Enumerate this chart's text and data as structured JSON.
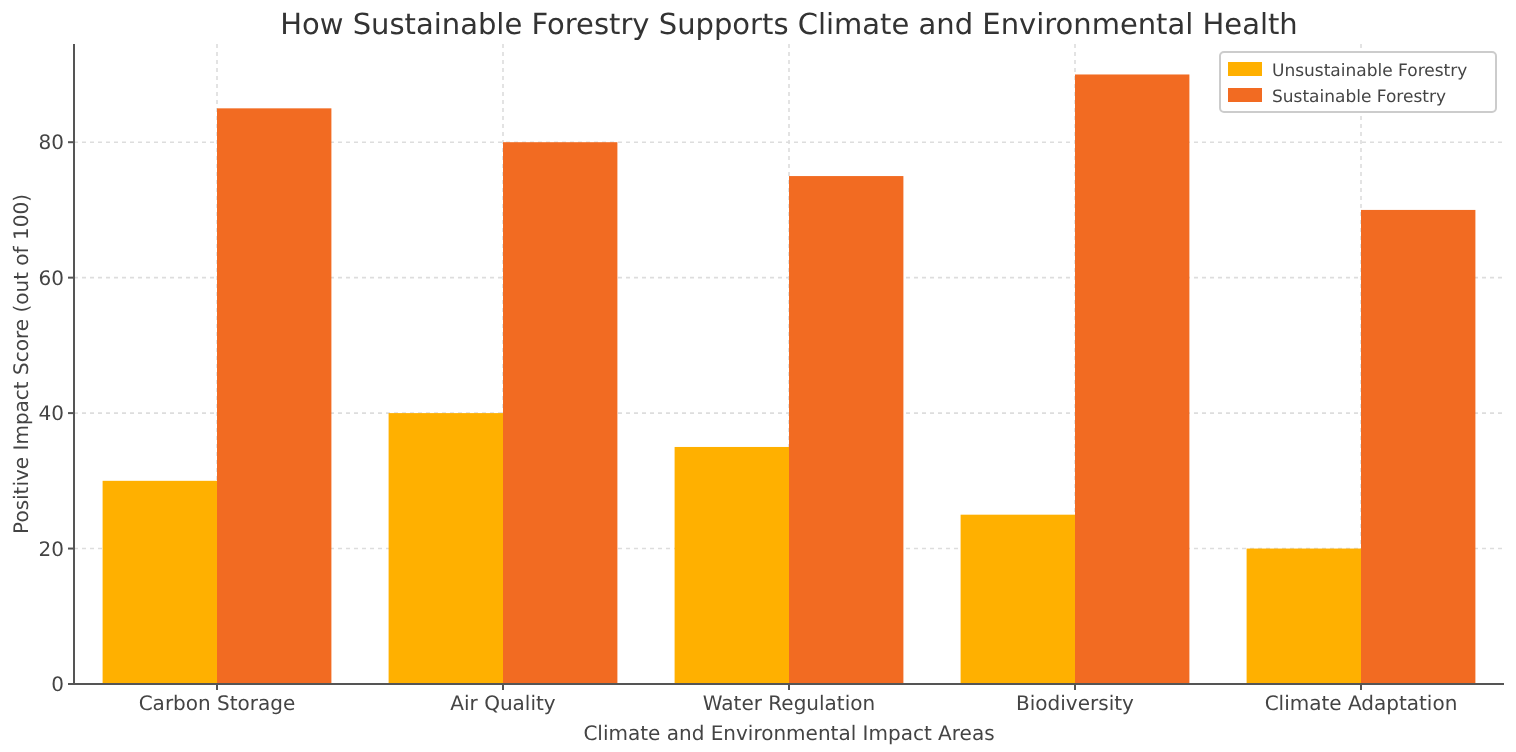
{
  "chart_data": {
    "type": "bar",
    "title": "How Sustainable Forestry Supports Climate and Environmental Health",
    "xlabel": "Climate and Environmental Impact Areas",
    "ylabel": "Positive Impact Score (out of 100)",
    "categories": [
      "Carbon Storage",
      "Air Quality",
      "Water Regulation",
      "Biodiversity",
      "Climate Adaptation"
    ],
    "series": [
      {
        "name": "Unsustainable Forestry",
        "color": "#ffb000",
        "values": [
          30,
          40,
          35,
          25,
          20
        ]
      },
      {
        "name": "Sustainable Forestry",
        "color": "#f26b22",
        "values": [
          85,
          80,
          75,
          90,
          70
        ]
      }
    ],
    "ylim": [
      0,
      94.5
    ],
    "yticks": [
      0,
      20,
      40,
      60,
      80
    ],
    "grid": true,
    "legend": "top right"
  }
}
